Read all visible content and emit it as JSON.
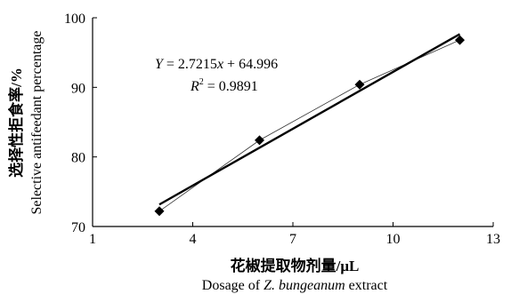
{
  "chart_data": {
    "type": "scatter",
    "title": "",
    "xlabel_cn": "花椒提取物剂量/μL",
    "xlabel_en_prefix": "Dosage of ",
    "xlabel_en_italic": "Z. bungeanum",
    "xlabel_en_suffix": " extract",
    "ylabel_cn": "选择性拒食率/%",
    "ylabel_en": "Selective antifeedant percentage",
    "xlim": [
      1,
      13
    ],
    "ylim": [
      70,
      100
    ],
    "xticks": [
      1,
      4,
      7,
      10,
      13
    ],
    "yticks": [
      70,
      80,
      90,
      100
    ],
    "grid": false,
    "series": [
      {
        "x": [
          3,
          6,
          9,
          12
        ],
        "y": [
          72.2,
          82.4,
          90.4,
          96.8
        ],
        "marker": "diamond",
        "connected": true
      }
    ],
    "regression": {
      "slope": 2.7215,
      "intercept": 64.996,
      "equation_lhs": "Y",
      "equation_rhs": " = 2.7215",
      "equation_var": "x",
      "equation_tail": " + 64.996",
      "r2_label": "R",
      "r2_exp": "2",
      "r2_value": " = 0.9891",
      "x_range": [
        3,
        12
      ]
    }
  }
}
